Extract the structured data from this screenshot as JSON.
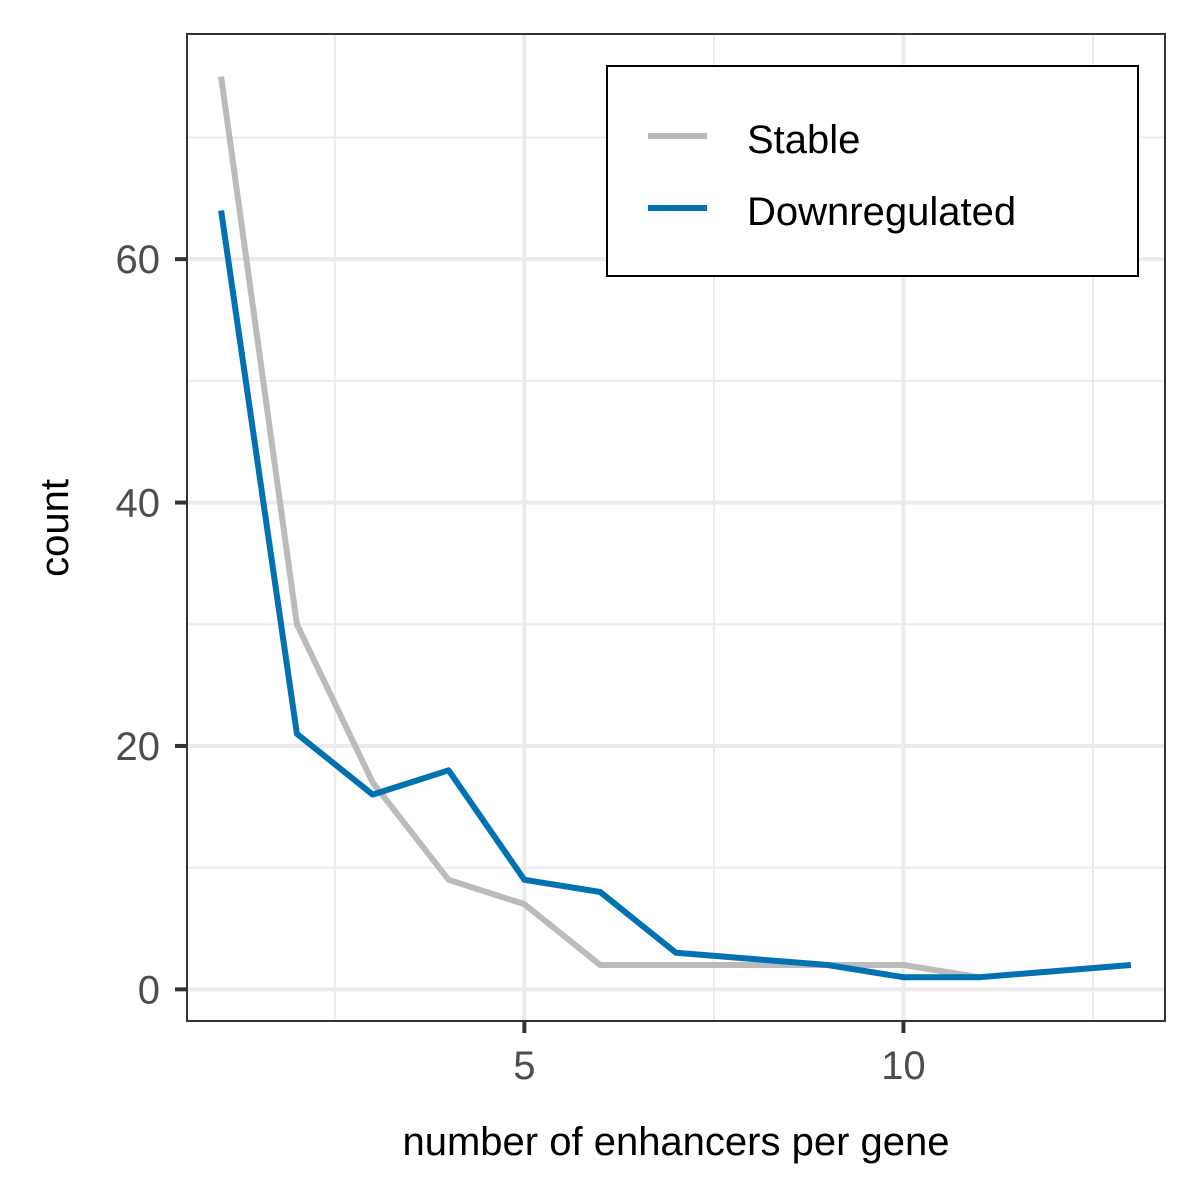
{
  "chart_data": {
    "type": "line",
    "xlabel": "number of enhancers per gene",
    "ylabel": "count",
    "xlim": [
      0.55,
      13.45
    ],
    "ylim": [
      -2.6,
      78.5
    ],
    "x_ticks": [
      5,
      10
    ],
    "x_tick_labels": [
      "5",
      "10"
    ],
    "x_minor_ticks": [
      2.5,
      7.5,
      12.5
    ],
    "y_ticks": [
      0,
      20,
      40,
      60
    ],
    "y_tick_labels": [
      "0",
      "20",
      "40",
      "60"
    ],
    "y_minor_ticks": [
      10,
      30,
      50,
      70
    ],
    "grid": true,
    "legend_position": "top-right",
    "legend_boxed": true,
    "series": [
      {
        "name": "Stable",
        "color": "#bbbbbb",
        "x": [
          1,
          2,
          3,
          4,
          5,
          6,
          7,
          8,
          9,
          10,
          11
        ],
        "y": [
          75,
          30,
          17,
          9,
          7,
          2,
          2,
          2,
          2,
          2,
          1
        ]
      },
      {
        "name": "Downregulated",
        "color": "#0072b2",
        "x": [
          1,
          2,
          3,
          4,
          5,
          6,
          7,
          8,
          9,
          10,
          11,
          12,
          13
        ],
        "y": [
          64,
          21,
          16,
          18,
          9,
          8,
          3,
          2.5,
          2,
          1,
          1,
          1.5,
          2
        ]
      }
    ]
  }
}
